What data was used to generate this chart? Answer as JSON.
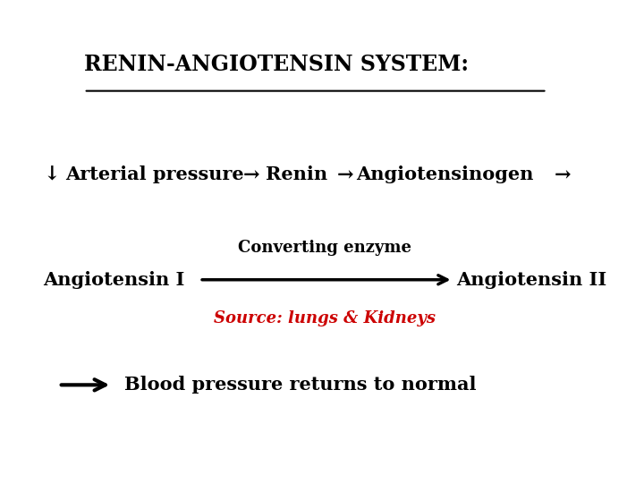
{
  "title": "RENIN-ANGIOTENSIN SYSTEM:",
  "title_fontsize": 17,
  "bg_color": "#ffffff",
  "line1_down_arrow": "↓",
  "line1_text1": "Arterial pressure",
  "line1_arrow1": "→",
  "line1_text2": "Renin",
  "line1_arrow2": "→",
  "line1_text3": "Angiotensinogen",
  "line1_arrow3": "→",
  "line2_text1": "Angiotensin I",
  "line2_above": "Converting enzyme",
  "line2_text2": "Angiotensin II",
  "line2_source": "Source: lungs & Kidneys",
  "line2_source_color": "#cc0000",
  "line3_text": "Blood pressure returns to normal",
  "main_fontsize": 15,
  "small_fontsize": 13,
  "source_fontsize": 13
}
